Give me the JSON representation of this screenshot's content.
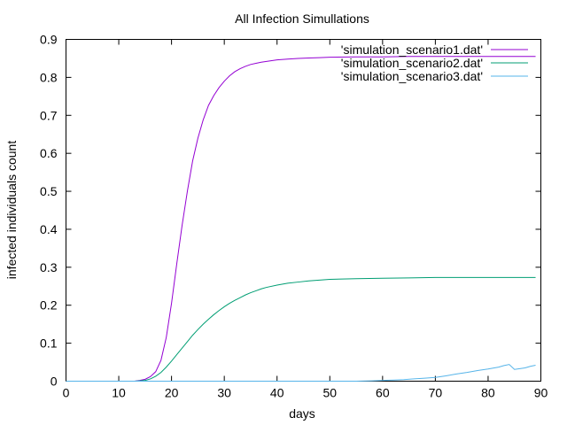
{
  "chart_data": {
    "type": "line",
    "title": "All Infection Simullations",
    "xlabel": "days",
    "ylabel": "infected individuals count",
    "xlim": [
      0,
      90
    ],
    "ylim": [
      0,
      0.9
    ],
    "xticks": [
      0,
      10,
      20,
      30,
      40,
      50,
      60,
      70,
      80,
      90
    ],
    "yticks": [
      0,
      0.1,
      0.2,
      0.3,
      0.4,
      0.5,
      0.6,
      0.7,
      0.8,
      0.9
    ],
    "grid": false,
    "legend_position": "top-right",
    "series": [
      {
        "name": "'simulation_scenario1.dat'",
        "color": "#9400d3",
        "x": [
          0,
          13,
          14,
          15,
          16,
          17,
          18,
          19,
          20,
          21,
          22,
          23,
          24,
          25,
          26,
          27,
          28,
          29,
          30,
          31,
          32,
          33,
          34,
          35,
          36,
          37,
          38,
          39,
          40,
          42,
          44,
          46,
          48,
          50,
          55,
          60,
          65,
          70,
          80,
          89
        ],
        "y": [
          0,
          0,
          0.002,
          0.005,
          0.012,
          0.025,
          0.055,
          0.115,
          0.205,
          0.31,
          0.41,
          0.5,
          0.58,
          0.64,
          0.688,
          0.726,
          0.752,
          0.773,
          0.79,
          0.804,
          0.815,
          0.823,
          0.829,
          0.834,
          0.837,
          0.84,
          0.842,
          0.844,
          0.846,
          0.848,
          0.85,
          0.851,
          0.852,
          0.853,
          0.854,
          0.854,
          0.855,
          0.855,
          0.855,
          0.855
        ]
      },
      {
        "name": "'simulation_scenario2.dat'",
        "color": "#009e73",
        "x": [
          0,
          13,
          15,
          16,
          17,
          18,
          19,
          20,
          21,
          22,
          23,
          24,
          25,
          26,
          27,
          28,
          29,
          30,
          31,
          32,
          33,
          34,
          35,
          36,
          37,
          38,
          40,
          42,
          44,
          46,
          48,
          50,
          55,
          60,
          65,
          70,
          80,
          89
        ],
        "y": [
          0,
          0,
          0.002,
          0.006,
          0.013,
          0.023,
          0.037,
          0.053,
          0.07,
          0.087,
          0.104,
          0.121,
          0.136,
          0.15,
          0.163,
          0.175,
          0.186,
          0.196,
          0.205,
          0.213,
          0.22,
          0.227,
          0.233,
          0.238,
          0.243,
          0.247,
          0.253,
          0.258,
          0.261,
          0.264,
          0.266,
          0.268,
          0.27,
          0.271,
          0.272,
          0.273,
          0.273,
          0.273
        ]
      },
      {
        "name": "'simulation_scenario3.dat'",
        "color": "#56b4e9",
        "x": [
          0,
          55,
          58,
          60,
          62,
          64,
          66,
          68,
          70,
          72,
          74,
          76,
          78,
          80,
          82,
          83,
          84,
          85,
          86,
          87,
          88,
          89
        ],
        "y": [
          0,
          0,
          0.001,
          0.002,
          0.003,
          0.004,
          0.006,
          0.008,
          0.01,
          0.014,
          0.019,
          0.023,
          0.028,
          0.032,
          0.037,
          0.041,
          0.044,
          0.031,
          0.033,
          0.035,
          0.039,
          0.042
        ]
      }
    ]
  }
}
